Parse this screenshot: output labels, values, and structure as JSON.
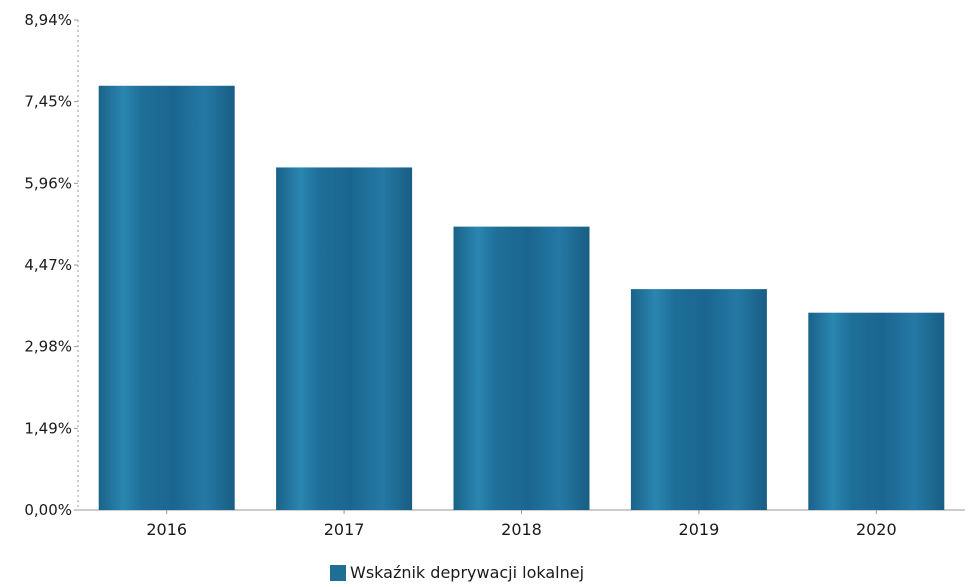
{
  "chart_data": {
    "type": "bar",
    "categories": [
      "2016",
      "2017",
      "2018",
      "2019",
      "2020"
    ],
    "series": [
      {
        "name": "Wskaźnik deprywacji lokalnej",
        "values": [
          7.74,
          6.25,
          5.17,
          4.03,
          3.6
        ],
        "color": "#1f6e96"
      }
    ],
    "y_ticks": [
      "0,00%",
      "1,49%",
      "2,98%",
      "4,47%",
      "5,96%",
      "7,45%",
      "8,94%"
    ],
    "ylim": [
      0,
      8.94
    ],
    "ylabel": "",
    "xlabel": "",
    "title": "",
    "legend_position": "bottom",
    "grid": false
  }
}
